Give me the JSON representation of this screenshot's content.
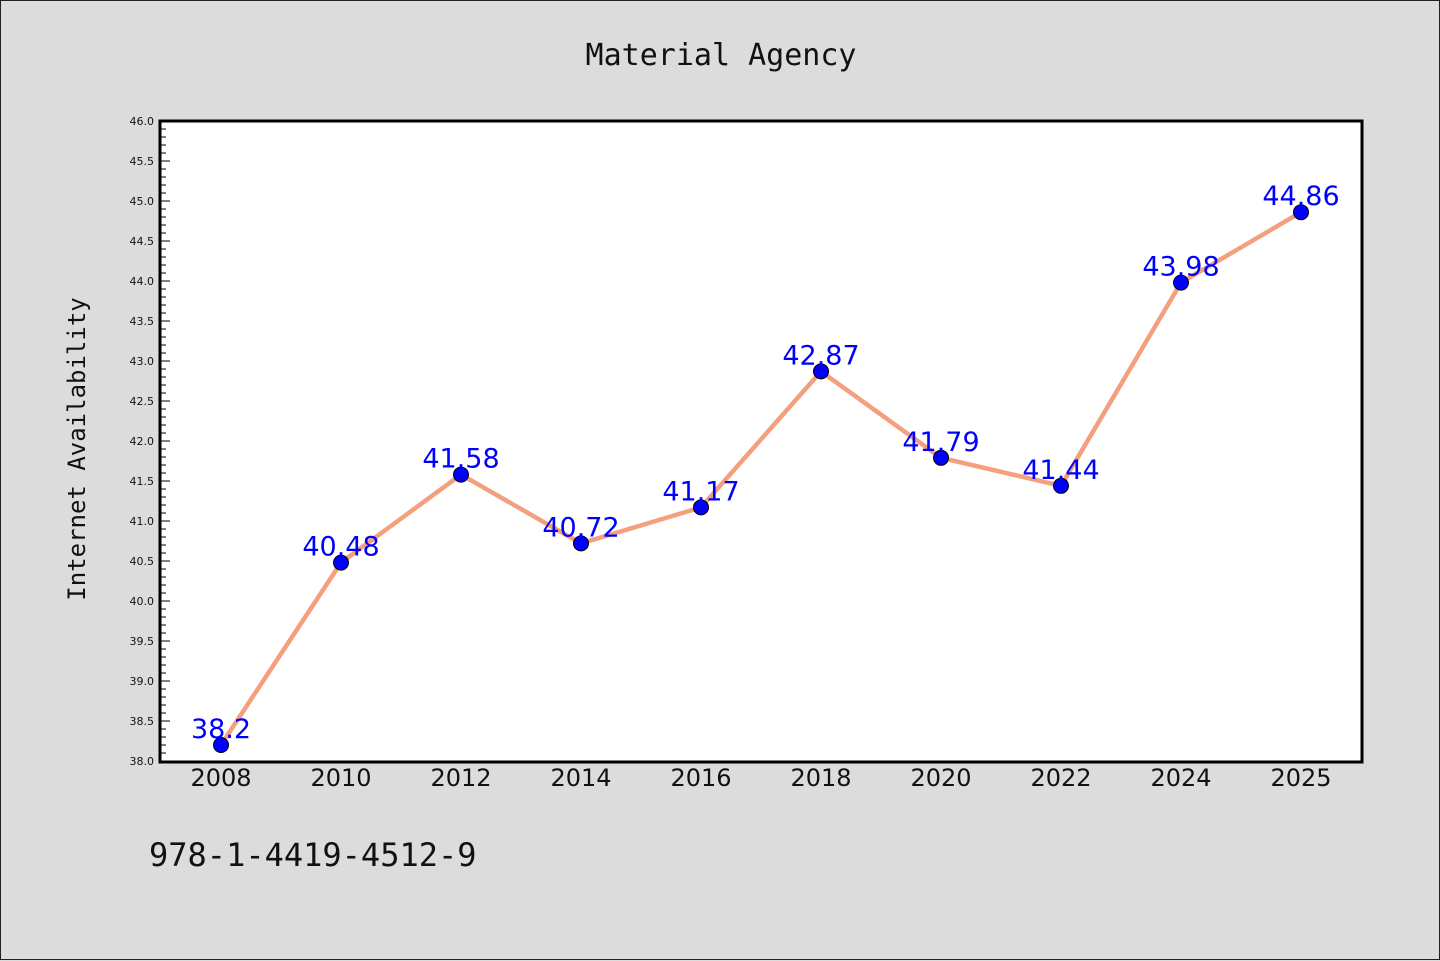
{
  "chart_data": {
    "type": "line",
    "title": "Material Agency",
    "xlabel": "",
    "ylabel": "Internet Availability",
    "categories": [
      "2008",
      "2010",
      "2012",
      "2014",
      "2016",
      "2018",
      "2020",
      "2022",
      "2024",
      "2025"
    ],
    "series": [
      {
        "values": [
          38.2,
          40.48,
          41.58,
          40.72,
          41.17,
          42.87,
          41.79,
          41.44,
          43.98,
          44.86
        ],
        "line_color": "#f4a07e",
        "marker_color": "#0000ff"
      }
    ],
    "data_labels": [
      "38.2",
      "40.48",
      "41.58",
      "40.72",
      "41.17",
      "42.87",
      "41.79",
      "41.44",
      "43.98",
      "44.86"
    ],
    "ylim": [
      38.0,
      46.0
    ],
    "yticks": [
      "38.0",
      "38.5",
      "39.0",
      "39.5",
      "40.0",
      "40.5",
      "41.0",
      "41.5",
      "42.0",
      "42.5",
      "43.0",
      "43.5",
      "44.0",
      "44.5",
      "45.0",
      "45.5",
      "46.0"
    ],
    "grid": false,
    "legend": "none",
    "label_color": "#0000ff",
    "footnote": "978-1-4419-4512-9"
  }
}
